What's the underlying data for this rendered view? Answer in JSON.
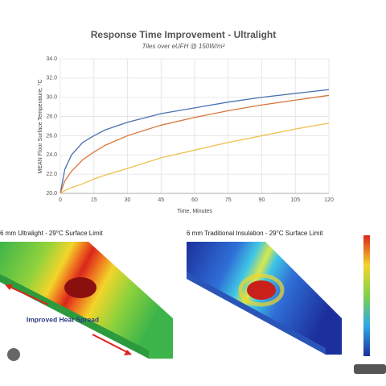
{
  "chart_data": {
    "type": "line",
    "title": "Response Time Improvement - Ultralight",
    "subtitle": "Tiles over eUFH @ 150W/m²",
    "x_label": "Time, Minutes",
    "y_label": "MEAN Floor Surface Temperature, °C",
    "x": [
      0,
      2,
      5,
      10,
      15,
      20,
      30,
      45,
      60,
      75,
      90,
      105,
      120
    ],
    "series": [
      {
        "color": "#4a72b0",
        "values": [
          20,
          22.5,
          24,
          25.3,
          26.0,
          26.6,
          27.4,
          28.3,
          28.9,
          29.5,
          30.0,
          30.4,
          30.8
        ]
      },
      {
        "color": "#d9763a",
        "values": [
          20,
          21.3,
          22.3,
          23.5,
          24.3,
          25.0,
          26.0,
          27.1,
          27.9,
          28.6,
          29.2,
          29.7,
          30.2
        ]
      },
      {
        "color": "#f0c050",
        "values": [
          20,
          20.3,
          20.6,
          21.0,
          21.5,
          21.9,
          22.6,
          23.7,
          24.5,
          25.3,
          26.0,
          26.7,
          27.3
        ]
      }
    ],
    "xlim": [
      0,
      120
    ],
    "xticks": [
      0,
      15,
      30,
      45,
      60,
      75,
      90,
      105,
      120
    ],
    "ylim": [
      20,
      34
    ],
    "yticks": [
      {
        "value": 20,
        "label": "20.0"
      },
      {
        "value": 22,
        "label": "22.0"
      },
      {
        "value": 24,
        "label": "24.0"
      },
      {
        "value": 26,
        "label": "26.0"
      },
      {
        "value": 28,
        "label": "28.0"
      },
      {
        "value": 30,
        "label": "30.0"
      },
      {
        "value": 32,
        "label": "32.0"
      },
      {
        "value": 34,
        "label": "34.0"
      }
    ],
    "grid": true
  },
  "images": {
    "left_caption": "6 mm Ultralight - 29°C Surface Limit",
    "right_caption": "6 mm Traditional Insulation - 29°C Surface Limit",
    "annotation": "Improved Heat Spread"
  }
}
